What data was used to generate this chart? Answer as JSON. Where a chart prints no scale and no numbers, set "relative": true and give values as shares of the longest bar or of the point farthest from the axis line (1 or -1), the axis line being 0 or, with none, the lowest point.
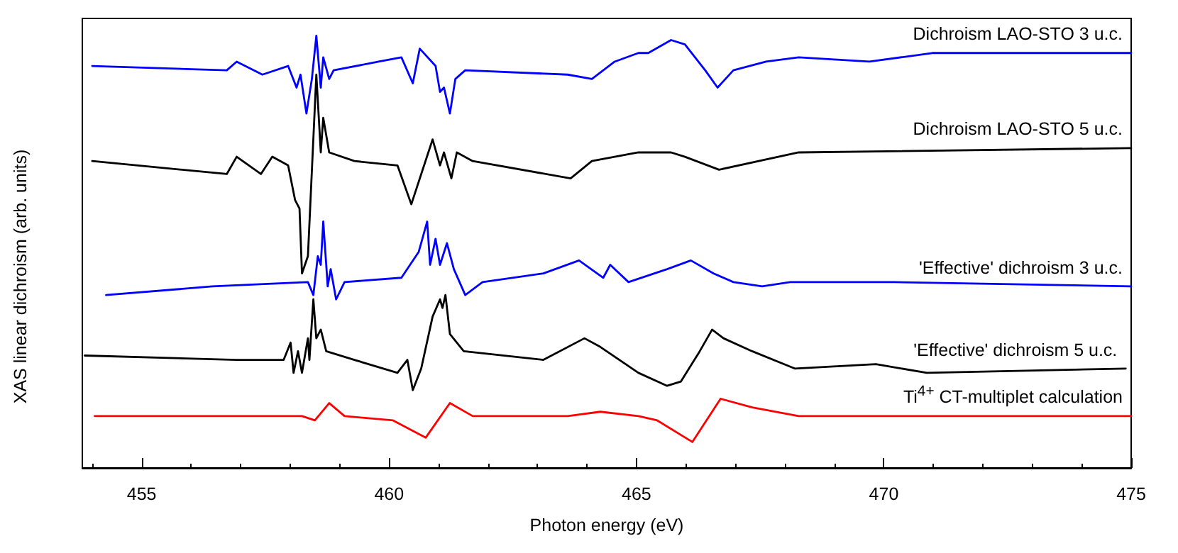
{
  "chart_data": {
    "type": "line",
    "relative": true,
    "xlabel": "Photon energy (eV)",
    "ylabel": "XAS linear dichroism (arb. units)",
    "xlim": [
      453.8,
      475
    ],
    "xticks": [
      455,
      460,
      465,
      470,
      475
    ],
    "marker": "none",
    "line_style": "solid",
    "grid": false,
    "legend": false,
    "series": [
      {
        "name": "Dichroism LAO-STO 3 u.c.",
        "color": "#0000ff",
        "x": [
          454.0,
          456.72,
          456.92,
          457.44,
          457.96,
          458.13,
          458.21,
          458.33,
          458.44,
          458.53,
          458.62,
          458.67,
          458.79,
          458.88,
          459.79,
          460.25,
          460.48,
          460.62,
          460.94,
          461.03,
          461.11,
          461.23,
          461.34,
          461.54,
          463.61,
          464.1,
          464.56,
          465.04,
          465.24,
          465.7,
          465.98,
          466.39,
          466.64,
          466.96,
          467.62,
          468.28,
          469.71,
          470.98,
          475.0
        ],
        "values": [
          0.93,
          0.92,
          0.94,
          0.91,
          0.93,
          0.88,
          0.91,
          0.82,
          0.9,
          1.0,
          0.88,
          0.95,
          0.9,
          0.92,
          0.94,
          0.95,
          0.89,
          0.97,
          0.93,
          0.87,
          0.88,
          0.82,
          0.9,
          0.92,
          0.91,
          0.9,
          0.94,
          0.96,
          0.96,
          0.99,
          0.98,
          0.92,
          0.88,
          0.92,
          0.94,
          0.95,
          0.94,
          0.96,
          0.96
        ]
      },
      {
        "name": "Dichroism LAO-STO 5 u.c.",
        "color": "#000000",
        "x": [
          454.0,
          456.72,
          456.92,
          457.41,
          457.64,
          457.96,
          458.1,
          458.19,
          458.24,
          458.36,
          458.53,
          458.62,
          458.67,
          458.79,
          459.3,
          460.17,
          460.45,
          460.88,
          461.03,
          461.11,
          461.26,
          461.37,
          461.69,
          463.67,
          464.1,
          465.04,
          465.7,
          465.98,
          466.67,
          468.28,
          475.0
        ],
        "values": [
          0.71,
          0.68,
          0.72,
          0.68,
          0.72,
          0.7,
          0.62,
          0.6,
          0.45,
          0.49,
          0.91,
          0.73,
          0.81,
          0.73,
          0.71,
          0.7,
          0.61,
          0.76,
          0.7,
          0.73,
          0.67,
          0.73,
          0.71,
          0.67,
          0.71,
          0.73,
          0.73,
          0.72,
          0.69,
          0.73,
          0.74
        ]
      },
      {
        "name": "'Effective' dichroism 3 u.c.",
        "color": "#0000ff",
        "x": [
          454.28,
          456.43,
          458.36,
          458.47,
          458.56,
          458.62,
          458.67,
          458.76,
          458.82,
          458.93,
          459.1,
          460.25,
          460.6,
          460.77,
          460.83,
          460.94,
          461.03,
          461.17,
          461.31,
          461.54,
          461.89,
          463.12,
          463.84,
          464.33,
          464.47,
          464.84,
          465.62,
          466.1,
          466.56,
          466.96,
          467.54,
          468.11,
          470.21,
          475.0
        ],
        "values": [
          0.4,
          0.42,
          0.43,
          0.4,
          0.49,
          0.47,
          0.57,
          0.42,
          0.46,
          0.39,
          0.43,
          0.44,
          0.5,
          0.57,
          0.47,
          0.53,
          0.47,
          0.52,
          0.46,
          0.4,
          0.43,
          0.45,
          0.48,
          0.44,
          0.47,
          0.43,
          0.46,
          0.48,
          0.45,
          0.43,
          0.42,
          0.43,
          0.43,
          0.42
        ]
      },
      {
        "name": "'Effective' dichroism 5 u.c.",
        "color": "#000000",
        "x": [
          453.85,
          456.92,
          457.87,
          458.01,
          458.07,
          458.16,
          458.24,
          458.36,
          458.39,
          458.47,
          458.53,
          458.62,
          458.73,
          459.3,
          460.17,
          460.37,
          460.48,
          460.65,
          460.88,
          461.03,
          461.08,
          461.14,
          461.23,
          461.51,
          463.12,
          463.95,
          464.27,
          465.04,
          465.62,
          465.9,
          466.28,
          466.53,
          466.76,
          467.34,
          468.2,
          469.84,
          470.87,
          474.89
        ],
        "values": [
          0.26,
          0.25,
          0.25,
          0.29,
          0.22,
          0.27,
          0.22,
          0.3,
          0.25,
          0.39,
          0.3,
          0.32,
          0.27,
          0.25,
          0.22,
          0.25,
          0.18,
          0.23,
          0.35,
          0.39,
          0.37,
          0.4,
          0.31,
          0.27,
          0.25,
          0.3,
          0.28,
          0.22,
          0.19,
          0.2,
          0.27,
          0.32,
          0.3,
          0.27,
          0.23,
          0.24,
          0.22,
          0.23
        ]
      },
      {
        "name": "Ti$^{4+}$ CT-multiplet calculation",
        "color": "#ff0000",
        "x": [
          454.05,
          458.24,
          458.5,
          458.79,
          459.1,
          460.08,
          460.74,
          461.23,
          461.69,
          463.61,
          464.27,
          465.04,
          465.42,
          466.13,
          466.7,
          467.34,
          468.28,
          475.0
        ],
        "values": [
          0.12,
          0.12,
          0.11,
          0.15,
          0.12,
          0.11,
          0.07,
          0.15,
          0.12,
          0.12,
          0.13,
          0.12,
          0.11,
          0.06,
          0.16,
          0.14,
          0.12,
          0.12
        ]
      }
    ]
  }
}
